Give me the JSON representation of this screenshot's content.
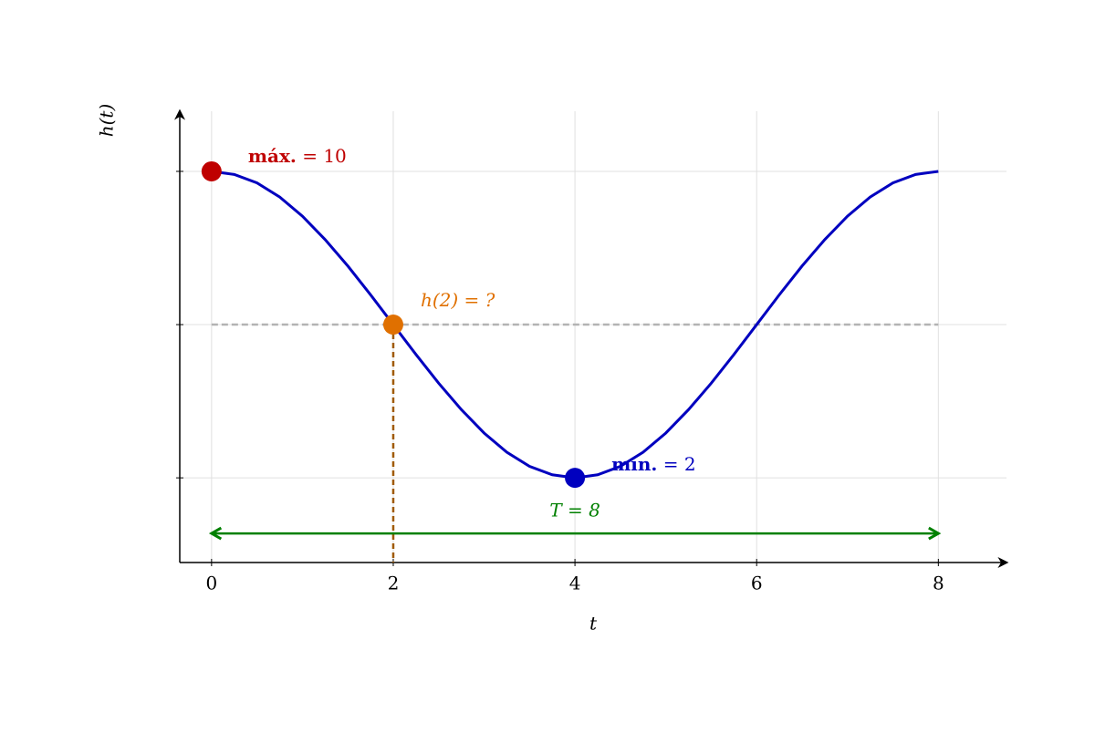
{
  "chart_data": {
    "type": "line",
    "x_label": "t",
    "y_label": "h(t)",
    "xlim": [
      -0.35,
      8.75
    ],
    "ylim": [
      -0.21,
      11.57
    ],
    "xticks": [
      0,
      2,
      4,
      6,
      8
    ],
    "yticks": [
      {
        "value": 2,
        "label": null
      },
      {
        "value": 6,
        "label": null
      },
      {
        "value": 10,
        "label": null
      }
    ],
    "grid": true,
    "series": [
      {
        "name": "h(t)",
        "color": "#0000bf",
        "x": [
          0,
          0.25,
          0.5,
          0.75,
          1,
          1.25,
          1.5,
          1.75,
          2,
          2.25,
          2.5,
          2.75,
          3,
          3.25,
          3.5,
          3.75,
          4,
          4.25,
          4.5,
          4.75,
          5,
          5.25,
          5.5,
          5.75,
          6,
          6.25,
          6.5,
          6.75,
          7,
          7.25,
          7.5,
          7.75,
          8
        ],
        "values": [
          10,
          9.92,
          9.7,
          9.33,
          8.83,
          8.22,
          7.53,
          6.78,
          6,
          5.22,
          4.47,
          3.78,
          3.17,
          2.67,
          2.3,
          2.08,
          2,
          2.08,
          2.3,
          2.67,
          3.17,
          3.78,
          4.47,
          5.22,
          6,
          6.78,
          7.53,
          8.22,
          8.83,
          9.33,
          9.7,
          9.92,
          10
        ]
      }
    ],
    "points": [
      {
        "x": 0,
        "y": 10,
        "color": "#bf0000",
        "bold": "máx.",
        "label": "= 10"
      },
      {
        "x": 2,
        "y": 6,
        "color": "#e07000",
        "bold": null,
        "label": "h(2) = ?"
      },
      {
        "x": 4,
        "y": 2,
        "color": "#0000bf",
        "bold": "mín.",
        "label": "= 2"
      }
    ],
    "midline": {
      "y": 6,
      "color": "#b3b3b3"
    },
    "guide": {
      "x": 2,
      "color": "#a05a00"
    },
    "period": {
      "start": 0,
      "end": 8,
      "y": 0.55,
      "label": "T = 8",
      "color": "#008000"
    }
  }
}
